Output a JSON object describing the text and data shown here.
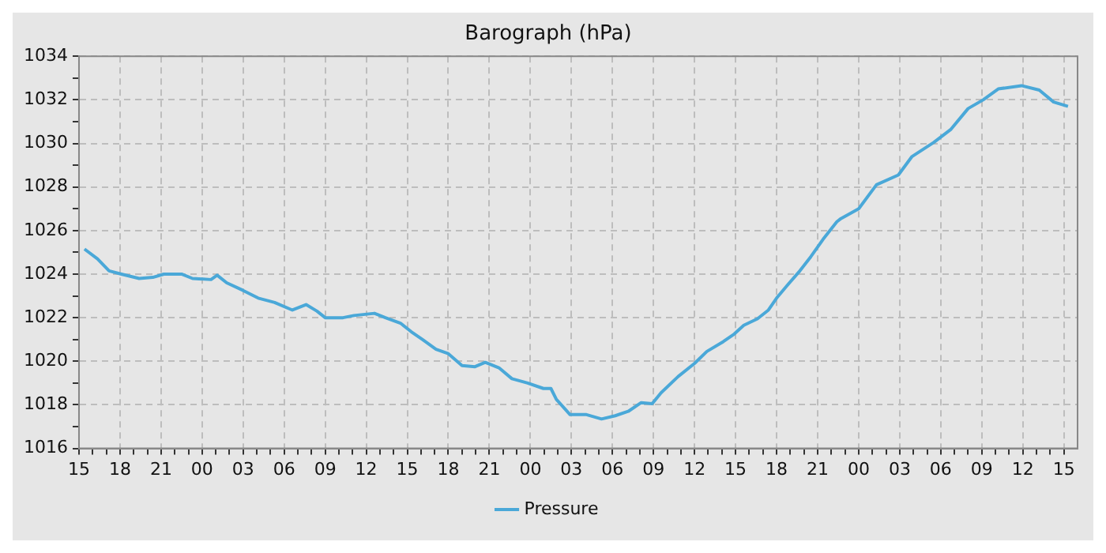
{
  "chart_data": {
    "type": "line",
    "title": "Barograph (hPa)",
    "x": [
      15.4,
      16.35,
      17.2,
      18.1,
      19.4,
      20.4,
      21.2,
      22.5,
      23.3,
      24.65,
      25.1,
      25.8,
      27.0,
      28.1,
      29.3,
      30.6,
      31.6,
      32.4,
      33.0,
      34.3,
      35.1,
      36.6,
      37.4,
      38.5,
      39.3,
      40.1,
      41.1,
      42.0,
      43.0,
      43.95,
      44.7,
      45.7,
      46.65,
      47.8,
      48.95,
      49.5,
      49.9,
      50.9,
      52.1,
      53.2,
      54.2,
      55.15,
      56.1,
      56.9,
      57.55,
      58.8,
      60.0,
      60.9,
      62.1,
      62.9,
      63.6,
      64.6,
      65.4,
      66.0,
      66.8,
      67.7,
      68.5,
      69.4,
      70.4,
      70.7,
      72.0,
      73.3,
      74.9,
      75.9,
      77.5,
      78.75,
      80.0,
      81.1,
      82.2,
      83.9,
      85.2,
      86.25,
      87.3
    ],
    "series": [
      {
        "name": "Pressure",
        "color": "#4aa8d8",
        "values": [
          1025.15,
          1024.7,
          1024.15,
          1024.0,
          1023.8,
          1023.85,
          1024.0,
          1024.0,
          1023.8,
          1023.75,
          1023.95,
          1023.6,
          1023.25,
          1022.9,
          1022.7,
          1022.35,
          1022.6,
          1022.3,
          1022.0,
          1022.0,
          1022.1,
          1022.2,
          1022.0,
          1021.75,
          1021.35,
          1021.0,
          1020.55,
          1020.35,
          1019.8,
          1019.75,
          1019.95,
          1019.7,
          1019.2,
          1019.0,
          1018.75,
          1018.75,
          1018.25,
          1017.55,
          1017.55,
          1017.35,
          1017.5,
          1017.7,
          1018.1,
          1018.05,
          1018.55,
          1019.3,
          1019.9,
          1020.45,
          1020.9,
          1021.25,
          1021.65,
          1021.95,
          1022.35,
          1022.9,
          1023.5,
          1024.15,
          1024.8,
          1025.6,
          1026.4,
          1026.55,
          1027.0,
          1028.1,
          1028.55,
          1029.4,
          1030.05,
          1030.65,
          1031.6,
          1032.0,
          1032.5,
          1032.65,
          1032.45,
          1031.9,
          1031.7
        ]
      }
    ],
    "xlim": [
      15,
      88
    ],
    "xticks": [
      {
        "value": 15,
        "label": "15"
      },
      {
        "value": 16,
        "label": null
      },
      {
        "value": 17,
        "label": null
      },
      {
        "value": 18,
        "label": "18"
      },
      {
        "value": 19,
        "label": null
      },
      {
        "value": 20,
        "label": null
      },
      {
        "value": 21,
        "label": "21"
      },
      {
        "value": 22,
        "label": null
      },
      {
        "value": 23,
        "label": null
      },
      {
        "value": 24,
        "label": "00"
      },
      {
        "value": 25,
        "label": null
      },
      {
        "value": 26,
        "label": null
      },
      {
        "value": 27,
        "label": "03"
      },
      {
        "value": 28,
        "label": null
      },
      {
        "value": 29,
        "label": null
      },
      {
        "value": 30,
        "label": "06"
      },
      {
        "value": 31,
        "label": null
      },
      {
        "value": 32,
        "label": null
      },
      {
        "value": 33,
        "label": "09"
      },
      {
        "value": 34,
        "label": null
      },
      {
        "value": 35,
        "label": null
      },
      {
        "value": 36,
        "label": "12"
      },
      {
        "value": 37,
        "label": null
      },
      {
        "value": 38,
        "label": null
      },
      {
        "value": 39,
        "label": "15"
      },
      {
        "value": 40,
        "label": null
      },
      {
        "value": 41,
        "label": null
      },
      {
        "value": 42,
        "label": "18"
      },
      {
        "value": 43,
        "label": null
      },
      {
        "value": 44,
        "label": null
      },
      {
        "value": 45,
        "label": "21"
      },
      {
        "value": 46,
        "label": null
      },
      {
        "value": 47,
        "label": null
      },
      {
        "value": 48,
        "label": "00"
      },
      {
        "value": 49,
        "label": null
      },
      {
        "value": 50,
        "label": null
      },
      {
        "value": 51,
        "label": "03"
      },
      {
        "value": 52,
        "label": null
      },
      {
        "value": 53,
        "label": null
      },
      {
        "value": 54,
        "label": "06"
      },
      {
        "value": 55,
        "label": null
      },
      {
        "value": 56,
        "label": null
      },
      {
        "value": 57,
        "label": "09"
      },
      {
        "value": 58,
        "label": null
      },
      {
        "value": 59,
        "label": null
      },
      {
        "value": 60,
        "label": "12"
      },
      {
        "value": 61,
        "label": null
      },
      {
        "value": 62,
        "label": null
      },
      {
        "value": 63,
        "label": "15"
      },
      {
        "value": 64,
        "label": null
      },
      {
        "value": 65,
        "label": null
      },
      {
        "value": 66,
        "label": "18"
      },
      {
        "value": 67,
        "label": null
      },
      {
        "value": 68,
        "label": null
      },
      {
        "value": 69,
        "label": "21"
      },
      {
        "value": 70,
        "label": null
      },
      {
        "value": 71,
        "label": null
      },
      {
        "value": 72,
        "label": "00"
      },
      {
        "value": 73,
        "label": null
      },
      {
        "value": 74,
        "label": null
      },
      {
        "value": 75,
        "label": "03"
      },
      {
        "value": 76,
        "label": null
      },
      {
        "value": 77,
        "label": null
      },
      {
        "value": 78,
        "label": "06"
      },
      {
        "value": 79,
        "label": null
      },
      {
        "value": 80,
        "label": null
      },
      {
        "value": 81,
        "label": "09"
      },
      {
        "value": 82,
        "label": null
      },
      {
        "value": 83,
        "label": null
      },
      {
        "value": 84,
        "label": "12"
      },
      {
        "value": 85,
        "label": null
      },
      {
        "value": 86,
        "label": null
      },
      {
        "value": 87,
        "label": "15"
      }
    ],
    "ylim": [
      1016,
      1034
    ],
    "yticks": [
      1016,
      {
        "value": 1017,
        "label": null
      },
      1018,
      {
        "value": 1019,
        "label": null
      },
      1020,
      {
        "value": 1021,
        "label": null
      },
      1022,
      {
        "value": 1023,
        "label": null
      },
      1024,
      {
        "value": 1025,
        "label": null
      },
      1026,
      {
        "value": 1027,
        "label": null
      },
      1028,
      {
        "value": 1029,
        "label": null
      },
      1030,
      {
        "value": 1031,
        "label": null
      },
      1032,
      {
        "value": 1033,
        "label": null
      },
      1034
    ],
    "grid": true,
    "legend": "bottom",
    "marker": "none",
    "line_style": "solid"
  }
}
